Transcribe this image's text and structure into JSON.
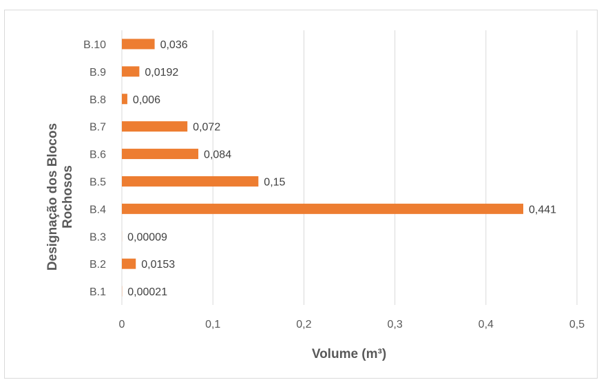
{
  "chart_data": {
    "type": "bar",
    "orientation": "horizontal",
    "categories": [
      "B.1",
      "B.2",
      "B.3",
      "B.4",
      "B.5",
      "B.6",
      "B.7",
      "B.8",
      "B.9",
      "B.10"
    ],
    "values": [
      0.00021,
      0.0153,
      9e-05,
      0.441,
      0.15,
      0.084,
      0.072,
      0.006,
      0.0192,
      0.036
    ],
    "data_labels": [
      "0,00021",
      "0,0153",
      "0,00009",
      "0,441",
      "0,15",
      "0,084",
      "0,072",
      "0,006",
      "0,0192",
      "0,036"
    ],
    "xlabel": "Volume (m³)",
    "ylabel_lines": [
      "Designação dos Blocos",
      "Rochosos"
    ],
    "xlim": [
      0,
      0.5
    ],
    "xticks": [
      0,
      0.1,
      0.2,
      0.3,
      0.4,
      0.5
    ],
    "xtick_labels": [
      "0",
      "0,1",
      "0,2",
      "0,3",
      "0,4",
      "0,5"
    ],
    "grid": "vertical",
    "legend": "none",
    "bar_color": "#ED7D31",
    "grid_color": "#d9d9d9"
  }
}
